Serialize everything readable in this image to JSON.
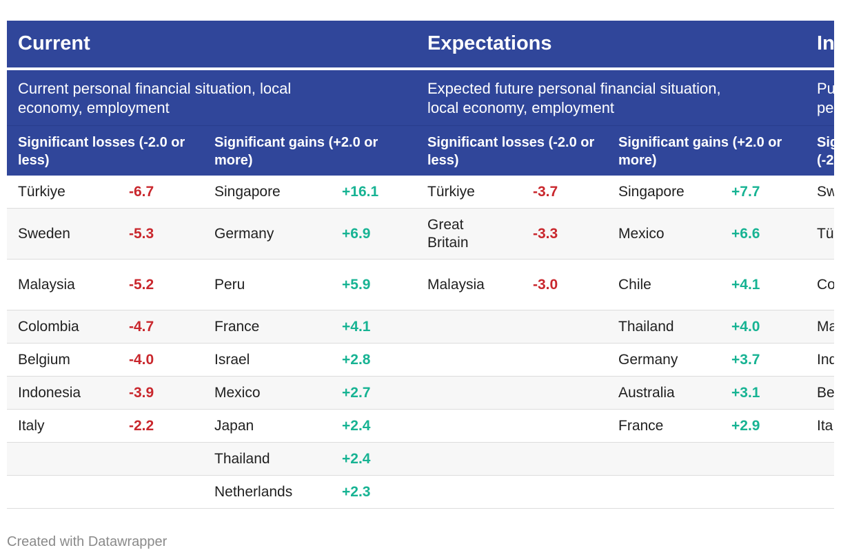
{
  "sections": [
    {
      "title": "Current",
      "description": "Current personal financial situation, local economy, employment"
    },
    {
      "title": "Expectations",
      "description": "Expected future personal financial situation, local economy, employment"
    },
    {
      "title": "In",
      "description": "Pu pe"
    }
  ],
  "subheaders": [
    "Significant losses (-2.0 or less)",
    "Significant gains (+2.0 or more)",
    "Significant losses (-2.0 or less)",
    "Significant gains (+2.0 or more)",
    "Sig (-2"
  ],
  "rows": [
    {
      "c1": "Türkiye",
      "v1": "-6.7",
      "c2": "Singapore",
      "v2": "+16.1",
      "c3": "Türkiye",
      "v3": "-3.7",
      "c4": "Singapore",
      "v4": "+7.7",
      "c5": "Sw"
    },
    {
      "c1": "Sweden",
      "v1": "-5.3",
      "c2": "Germany",
      "v2": "+6.9",
      "c3": "Great Britain",
      "v3": "-3.3",
      "c4": "Mexico",
      "v4": "+6.6",
      "c5": "Tü"
    },
    {
      "c1": "Malaysia",
      "v1": "-5.2",
      "c2": "Peru",
      "v2": "+5.9",
      "c3": "Malaysia",
      "v3": "-3.0",
      "c4": "Chile",
      "v4": "+4.1",
      "c5": "Co"
    },
    {
      "c1": "Colombia",
      "v1": "-4.7",
      "c2": "France",
      "v2": "+4.1",
      "c3": "",
      "v3": "",
      "c4": "Thailand",
      "v4": "+4.0",
      "c5": "Ma"
    },
    {
      "c1": "Belgium",
      "v1": "-4.0",
      "c2": "Israel",
      "v2": "+2.8",
      "c3": "",
      "v3": "",
      "c4": "Germany",
      "v4": "+3.7",
      "c5": "Ind"
    },
    {
      "c1": "Indonesia",
      "v1": "-3.9",
      "c2": "Mexico",
      "v2": "+2.7",
      "c3": "",
      "v3": "",
      "c4": "Australia",
      "v4": "+3.1",
      "c5": "Be"
    },
    {
      "c1": "Italy",
      "v1": "-2.2",
      "c2": "Japan",
      "v2": "+2.4",
      "c3": "",
      "v3": "",
      "c4": "France",
      "v4": "+2.9",
      "c5": "Ita"
    },
    {
      "c1": "",
      "v1": "",
      "c2": "Thailand",
      "v2": "+2.4",
      "c3": "",
      "v3": "",
      "c4": "",
      "v4": "",
      "c5": ""
    },
    {
      "c1": "",
      "v1": "",
      "c2": "Netherlands",
      "v2": "+2.3",
      "c3": "",
      "v3": "",
      "c4": "",
      "v4": "",
      "c5": ""
    }
  ],
  "colors": {
    "header_bg": "#30469a",
    "negative": "#c9272d",
    "positive": "#17b393"
  },
  "chart_data": {
    "type": "table",
    "columns": [
      {
        "section": "Current",
        "group": "Significant losses (-2.0 or less)",
        "entries": [
          [
            "Türkiye",
            -6.7
          ],
          [
            "Sweden",
            -5.3
          ],
          [
            "Malaysia",
            -5.2
          ],
          [
            "Colombia",
            -4.7
          ],
          [
            "Belgium",
            -4.0
          ],
          [
            "Indonesia",
            -3.9
          ],
          [
            "Italy",
            -2.2
          ]
        ]
      },
      {
        "section": "Current",
        "group": "Significant gains (+2.0 or more)",
        "entries": [
          [
            "Singapore",
            16.1
          ],
          [
            "Germany",
            6.9
          ],
          [
            "Peru",
            5.9
          ],
          [
            "France",
            4.1
          ],
          [
            "Israel",
            2.8
          ],
          [
            "Mexico",
            2.7
          ],
          [
            "Japan",
            2.4
          ],
          [
            "Thailand",
            2.4
          ],
          [
            "Netherlands",
            2.3
          ]
        ]
      },
      {
        "section": "Expectations",
        "group": "Significant losses (-2.0 or less)",
        "entries": [
          [
            "Türkiye",
            -3.7
          ],
          [
            "Great Britain",
            -3.3
          ],
          [
            "Malaysia",
            -3.0
          ]
        ]
      },
      {
        "section": "Expectations",
        "group": "Significant gains (+2.0 or more)",
        "entries": [
          [
            "Singapore",
            7.7
          ],
          [
            "Mexico",
            6.6
          ],
          [
            "Chile",
            4.1
          ],
          [
            "Thailand",
            4.0
          ],
          [
            "Germany",
            3.7
          ],
          [
            "Australia",
            3.1
          ],
          [
            "France",
            2.9
          ]
        ]
      }
    ]
  },
  "footer": "Created with Datawrapper"
}
